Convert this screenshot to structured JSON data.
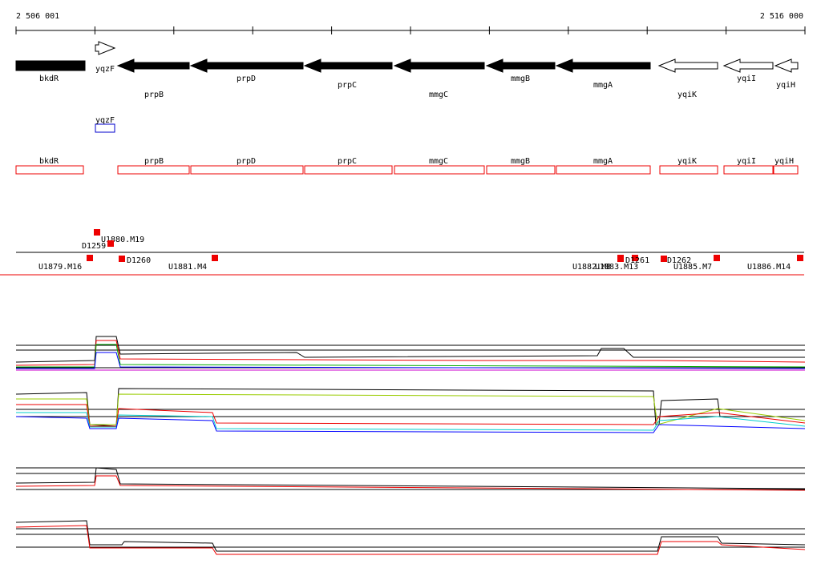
{
  "axis": {
    "start": "2 506 001",
    "end": "2 516 000"
  },
  "genes": [
    "bkdR",
    "yqzF",
    "prpB",
    "prpD",
    "prpC",
    "mmgC",
    "mmgB",
    "mmgA",
    "yqiK",
    "yqiI",
    "yqiH"
  ],
  "annotation_boxes": [
    "yqzF",
    "bkdR",
    "prpB",
    "prpD",
    "prpC",
    "mmgC",
    "mmgB",
    "mmgA",
    "yqiK",
    "yqiI",
    "yqiH"
  ],
  "segments": [
    "U1879.M16",
    "U1880.M19",
    "D1259",
    "D1260",
    "U1881.M4",
    "U1882.M8",
    "U1883.M13",
    "D1261",
    "D1262",
    "U1885.M7",
    "U1886.M14"
  ]
}
